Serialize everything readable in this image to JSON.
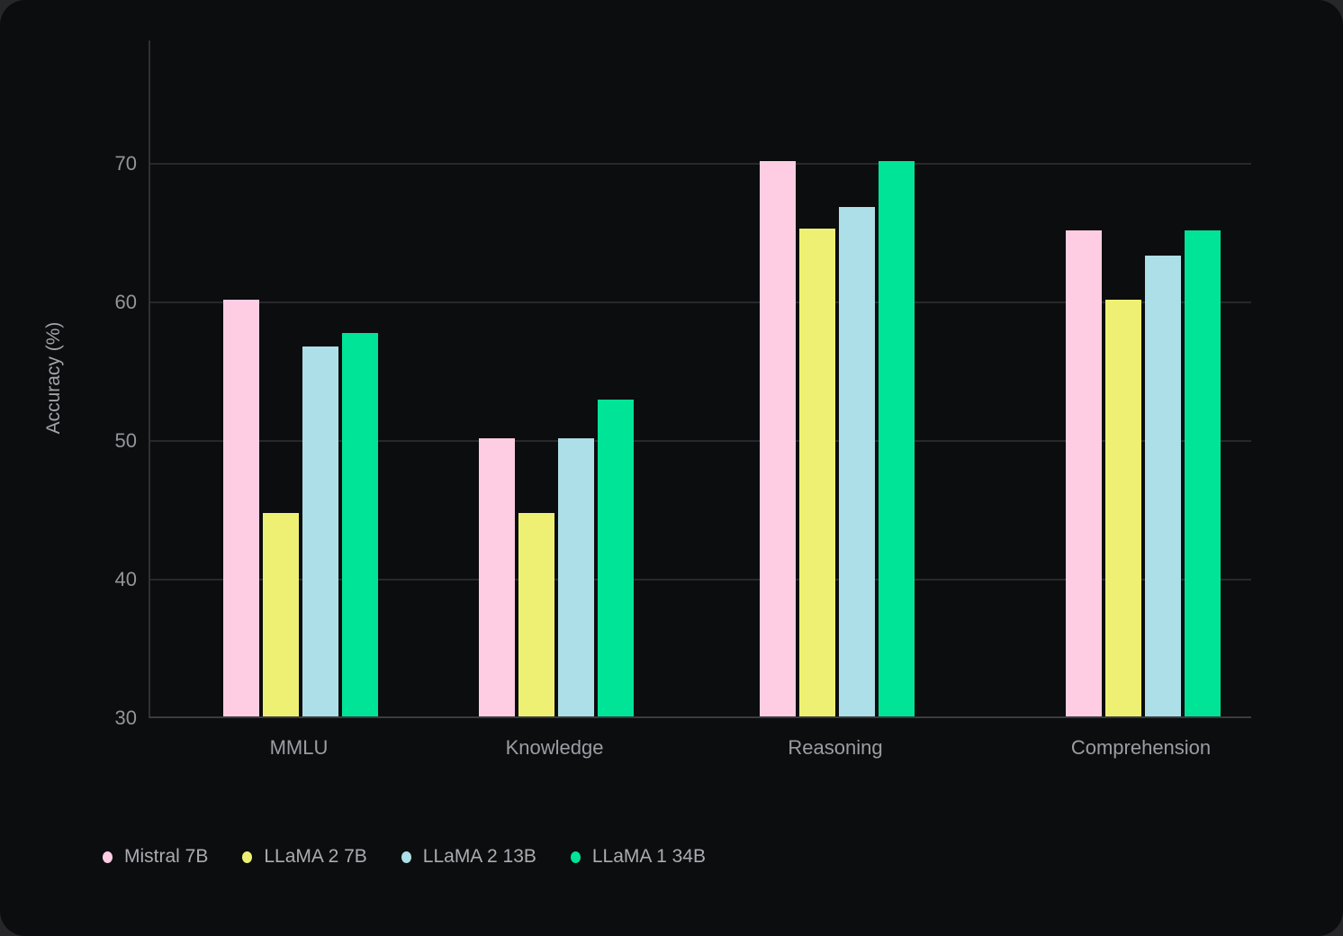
{
  "chart_data": {
    "type": "bar",
    "title": "",
    "categories": [
      "MMLU",
      "Knowledge",
      "Reasoning",
      "Comprehension"
    ],
    "series": [
      {
        "name": "Mistral 7B",
        "color": "#fecde3",
        "values": [
          60.1,
          50.1,
          70.1,
          65.1
        ]
      },
      {
        "name": "LLaMA 2 7B",
        "color": "#eef073",
        "values": [
          44.7,
          44.7,
          65.2,
          60.1
        ]
      },
      {
        "name": "LLaMA 2 13B",
        "color": "#addfe8",
        "values": [
          56.7,
          50.1,
          66.8,
          63.3
        ]
      },
      {
        "name": "LLaMA 1 34B",
        "color": "#00e497",
        "values": [
          57.7,
          52.9,
          70.1,
          65.1
        ]
      }
    ],
    "xlabel": "",
    "ylabel": "Accuracy (%)",
    "yticks": [
      30,
      40,
      50,
      60,
      70
    ],
    "ylim": [
      30,
      78.9
    ],
    "grid": true,
    "legend_position": "bottom-left",
    "colors": {
      "card_background": "#0c0d0e",
      "page_background": "#27272b",
      "gridline": "#28282c",
      "axis_line": "#3b3b40",
      "tick_text": "#93959c",
      "category_text": "#9b9da4",
      "legend_text": "#aaacb2"
    }
  }
}
